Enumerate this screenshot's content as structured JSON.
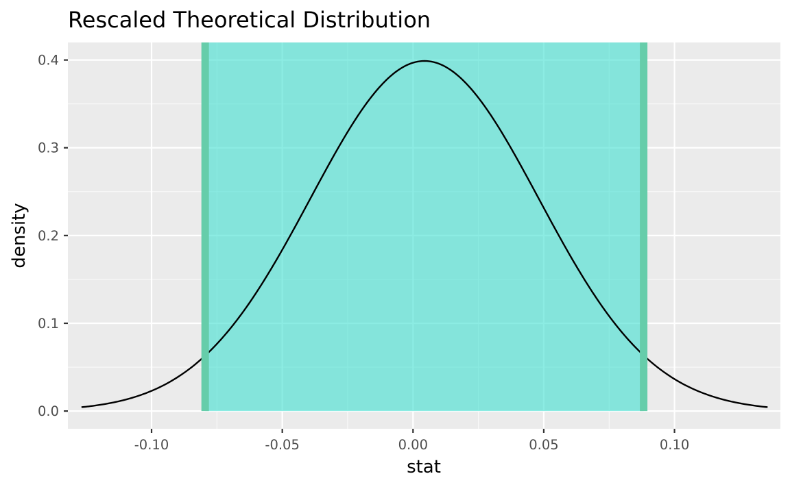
{
  "chart_data": {
    "type": "area",
    "title": "Rescaled Theoretical Distribution",
    "xlabel": "stat",
    "ylabel": "density",
    "xlim": [
      -0.132,
      0.1405
    ],
    "ylim": [
      -0.0202,
      0.42
    ],
    "x_ticks": [
      {
        "value": -0.1,
        "label": "-0.10"
      },
      {
        "value": -0.05,
        "label": "-0.05"
      },
      {
        "value": 0.0,
        "label": "0.00"
      },
      {
        "value": 0.05,
        "label": "0.05"
      },
      {
        "value": 0.1,
        "label": "0.10"
      }
    ],
    "y_ticks": [
      {
        "value": 0.0,
        "label": "0.0"
      },
      {
        "value": 0.1,
        "label": "0.1"
      },
      {
        "value": 0.2,
        "label": "0.2"
      },
      {
        "value": 0.3,
        "label": "0.3"
      },
      {
        "value": 0.4,
        "label": "0.4"
      }
    ],
    "grid": true,
    "density_curve": {
      "distribution": "normal",
      "mean": 0.0044,
      "sd": 0.0437,
      "x_range": [
        -0.1268,
        0.1356
      ],
      "color": "#000000"
    },
    "shaded_interval": {
      "lower": -0.0795,
      "upper": 0.0882,
      "fill_color": "#40E0D0",
      "fill_opacity": 0.6,
      "line_color": "#66CDAA"
    },
    "colors": {
      "panel_background": "#EBEBEB",
      "grid_major": "#FFFFFF",
      "shade_fill": "#40E0D0",
      "shade_edge": "#66CDAA"
    }
  }
}
